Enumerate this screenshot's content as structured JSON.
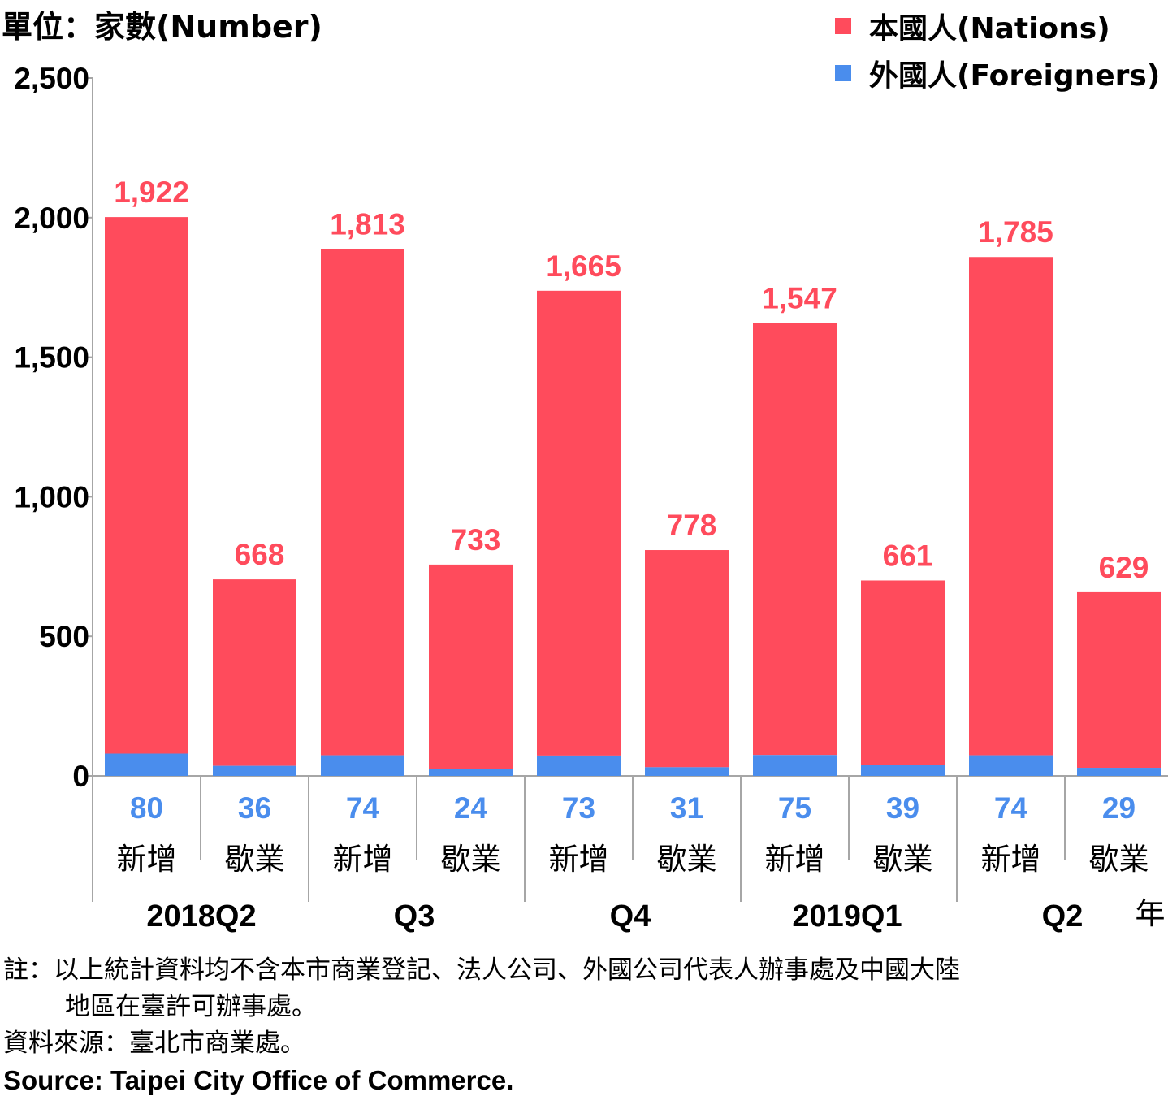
{
  "unit_label": "單位：家數(Number)",
  "legend": [
    {
      "label": "本國人(Nations)",
      "color": "#ff4b5c"
    },
    {
      "label": "外國人(Foreigners)",
      "color": "#4a8ded"
    }
  ],
  "chart_data": {
    "type": "bar",
    "stacked": true,
    "ylim": [
      0,
      2500
    ],
    "yticks": [
      "0",
      "500",
      "1,000",
      "1,500",
      "2,000",
      "2,500"
    ],
    "year_suffix": "年",
    "groups": [
      "2018Q2",
      "Q3",
      "Q4",
      "2019Q1",
      "Q2"
    ],
    "categories": [
      {
        "group": 0,
        "label": "新增"
      },
      {
        "group": 0,
        "label": "歇業"
      },
      {
        "group": 1,
        "label": "新增"
      },
      {
        "group": 1,
        "label": "歇業"
      },
      {
        "group": 2,
        "label": "新增"
      },
      {
        "group": 2,
        "label": "歇業"
      },
      {
        "group": 3,
        "label": "新增"
      },
      {
        "group": 3,
        "label": "歇業"
      },
      {
        "group": 4,
        "label": "新增"
      },
      {
        "group": 4,
        "label": "歇業"
      }
    ],
    "series": [
      {
        "name": "外國人(Foreigners)",
        "color": "#4a8ded",
        "values": [
          80,
          36,
          74,
          24,
          73,
          31,
          75,
          39,
          74,
          29
        ],
        "labels": [
          "80",
          "36",
          "74",
          "24",
          "73",
          "31",
          "75",
          "39",
          "74",
          "29"
        ]
      },
      {
        "name": "本國人(Nations)",
        "color": "#ff4b5c",
        "values": [
          1922,
          668,
          1813,
          733,
          1665,
          778,
          1547,
          661,
          1785,
          629
        ],
        "labels": [
          "1,922",
          "668",
          "1,813",
          "733",
          "1,665",
          "778",
          "1,547",
          "661",
          "1,785",
          "629"
        ]
      }
    ]
  },
  "notes": {
    "line1": "註：以上統計資料均不含本市商業登記、法人公司、外國公司代表人辦事處及中國大陸",
    "line2": "地區在臺許可辦事處。",
    "source_zh": "資料來源：臺北市商業處。",
    "source_en": "Source: Taipei City Office of Commerce."
  }
}
